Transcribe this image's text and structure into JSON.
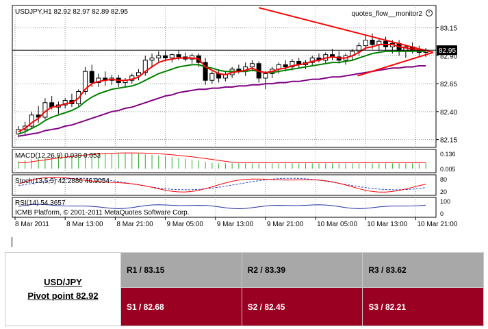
{
  "chart_data": {
    "type": "line",
    "title": "USDJPY,H1  82.92 82.97 82.89 82.95",
    "indicator_label": "quotes_flow__monitor2",
    "current_price": "82.95",
    "y_ticks": [
      "83.15",
      "82.90",
      "82.65",
      "82.40",
      "82.15"
    ],
    "ylim": [
      82.08,
      83.35
    ],
    "x_ticks": [
      "8 Mar 2011",
      "8 Mar 13:00",
      "8 Mar 21:00",
      "9 Mar 05:00",
      "9 Mar 13:00",
      "9 Mar 21:00",
      "10 Mar 05:00",
      "10 Mar 13:00",
      "10 Mar 21:00"
    ],
    "candles": [
      [
        82.2,
        82.27,
        82.17,
        82.24
      ],
      [
        82.24,
        82.31,
        82.2,
        82.27
      ],
      [
        82.27,
        82.4,
        82.25,
        82.37
      ],
      [
        82.37,
        82.45,
        82.3,
        82.35
      ],
      [
        82.35,
        82.52,
        82.33,
        82.48
      ],
      [
        82.48,
        82.54,
        82.42,
        82.44
      ],
      [
        82.44,
        82.49,
        82.38,
        82.46
      ],
      [
        82.46,
        82.52,
        82.43,
        82.5
      ],
      [
        82.5,
        82.56,
        82.44,
        82.47
      ],
      [
        82.47,
        82.6,
        82.45,
        82.58
      ],
      [
        82.58,
        82.8,
        82.55,
        82.76
      ],
      [
        82.76,
        82.82,
        82.62,
        82.66
      ],
      [
        82.66,
        82.74,
        82.62,
        82.7
      ],
      [
        82.7,
        82.76,
        82.63,
        82.68
      ],
      [
        82.68,
        82.73,
        82.64,
        82.7
      ],
      [
        82.7,
        82.73,
        82.62,
        82.66
      ],
      [
        82.66,
        82.7,
        82.62,
        82.68
      ],
      [
        82.68,
        82.74,
        82.65,
        82.72
      ],
      [
        82.72,
        82.78,
        82.68,
        82.75
      ],
      [
        82.75,
        82.9,
        82.72,
        82.86
      ],
      [
        82.86,
        82.92,
        82.8,
        82.88
      ],
      [
        82.88,
        82.94,
        82.84,
        82.9
      ],
      [
        82.9,
        82.94,
        82.85,
        82.88
      ],
      [
        82.88,
        82.92,
        82.84,
        82.91
      ],
      [
        82.91,
        82.95,
        82.86,
        82.89
      ],
      [
        82.89,
        82.93,
        82.85,
        82.87
      ],
      [
        82.87,
        82.92,
        82.83,
        82.9
      ],
      [
        82.9,
        82.92,
        82.8,
        82.84
      ],
      [
        82.84,
        82.88,
        82.64,
        82.68
      ],
      [
        82.68,
        82.76,
        82.65,
        82.74
      ],
      [
        82.74,
        82.78,
        82.66,
        82.7
      ],
      [
        82.7,
        82.76,
        82.67,
        82.73
      ],
      [
        82.73,
        82.8,
        82.7,
        82.78
      ],
      [
        82.78,
        82.82,
        82.74,
        82.76
      ],
      [
        82.76,
        82.84,
        82.72,
        82.8
      ],
      [
        82.8,
        82.86,
        82.76,
        82.83
      ],
      [
        82.83,
        82.85,
        82.66,
        82.7
      ],
      [
        82.7,
        82.76,
        82.6,
        82.74
      ],
      [
        82.74,
        82.8,
        82.7,
        82.78
      ],
      [
        82.78,
        82.84,
        82.74,
        82.82
      ],
      [
        82.82,
        82.86,
        82.76,
        82.8
      ],
      [
        82.8,
        82.87,
        82.77,
        82.85
      ],
      [
        82.85,
        82.88,
        82.79,
        82.82
      ],
      [
        82.82,
        82.86,
        82.78,
        82.84
      ],
      [
        82.84,
        82.9,
        82.81,
        82.88
      ],
      [
        82.88,
        82.92,
        82.84,
        82.86
      ],
      [
        82.86,
        82.93,
        82.83,
        82.91
      ],
      [
        82.91,
        82.96,
        82.86,
        82.89
      ],
      [
        82.89,
        82.94,
        82.83,
        82.86
      ],
      [
        82.86,
        82.92,
        82.82,
        82.9
      ],
      [
        82.9,
        82.96,
        82.86,
        82.94
      ],
      [
        82.94,
        83.02,
        82.9,
        82.99
      ],
      [
        82.99,
        83.08,
        82.95,
        83.04
      ],
      [
        83.04,
        83.1,
        82.96,
        83.0
      ],
      [
        83.0,
        83.06,
        82.94,
        83.03
      ],
      [
        83.03,
        83.07,
        82.95,
        82.98
      ],
      [
        82.98,
        83.04,
        82.92,
        83.01
      ],
      [
        83.01,
        83.04,
        82.9,
        82.94
      ],
      [
        82.94,
        83.0,
        82.88,
        82.98
      ],
      [
        82.98,
        83.02,
        82.92,
        82.95
      ],
      [
        82.95,
        82.99,
        82.9,
        82.93
      ],
      [
        82.93,
        82.97,
        82.89,
        82.95
      ]
    ],
    "ma_fast": [
      82.22,
      82.25,
      82.3,
      82.34,
      82.4,
      82.44,
      82.45,
      82.47,
      82.48,
      82.52,
      82.6,
      82.65,
      82.67,
      82.68,
      82.69,
      82.68,
      82.68,
      82.69,
      82.71,
      82.76,
      82.8,
      82.84,
      82.86,
      82.87,
      82.88,
      82.88,
      82.88,
      82.87,
      82.8,
      82.77,
      82.74,
      82.73,
      82.75,
      82.76,
      82.77,
      82.79,
      82.76,
      82.75,
      82.76,
      82.78,
      82.79,
      82.81,
      82.82,
      82.83,
      82.85,
      82.86,
      82.88,
      82.89,
      82.88,
      82.88,
      82.9,
      82.93,
      82.97,
      82.98,
      83.0,
      83.0,
      83.0,
      82.98,
      82.97,
      82.96,
      82.95,
      82.95
    ],
    "ma_mid": [
      82.2,
      82.22,
      82.25,
      82.28,
      82.32,
      82.35,
      82.37,
      82.39,
      82.41,
      82.44,
      82.49,
      82.53,
      82.56,
      82.58,
      82.6,
      82.61,
      82.62,
      82.63,
      82.65,
      82.68,
      82.71,
      82.74,
      82.76,
      82.78,
      82.8,
      82.81,
      82.82,
      82.82,
      82.8,
      82.79,
      82.77,
      82.76,
      82.76,
      82.76,
      82.76,
      82.77,
      82.76,
      82.75,
      82.75,
      82.76,
      82.77,
      82.78,
      82.79,
      82.8,
      82.81,
      82.82,
      82.83,
      82.84,
      82.84,
      82.85,
      82.86,
      82.88,
      82.9,
      82.92,
      82.93,
      82.94,
      82.94,
      82.94,
      82.94,
      82.94,
      82.94,
      82.94
    ],
    "ma_slow": [
      82.18,
      82.19,
      82.2,
      82.21,
      82.23,
      82.24,
      82.25,
      82.27,
      82.28,
      82.3,
      82.32,
      82.34,
      82.36,
      82.38,
      82.4,
      82.41,
      82.43,
      82.44,
      82.46,
      82.48,
      82.5,
      82.52,
      82.54,
      82.55,
      82.57,
      82.58,
      82.59,
      82.6,
      82.6,
      82.61,
      82.61,
      82.62,
      82.62,
      82.63,
      82.63,
      82.64,
      82.64,
      82.65,
      82.65,
      82.66,
      82.66,
      82.67,
      82.67,
      82.68,
      82.69,
      82.69,
      82.7,
      82.71,
      82.71,
      82.72,
      82.73,
      82.74,
      82.75,
      82.76,
      82.77,
      82.78,
      82.79,
      82.79,
      82.8,
      82.8,
      82.81,
      82.81
    ],
    "macd_label": "MACD(12,26,9) 0.039 0.053",
    "macd_ticks": [
      "0.136",
      "0.005"
    ],
    "stoch_label": "Stoch(13,5,5) 42.2886 46.9054",
    "stoch_ticks": [
      "80",
      "20"
    ],
    "rsi_label": "RSI(14) 54.3657",
    "rsi_ticks": [
      "100",
      "0"
    ],
    "platform_text": "ICMB Platform, © 2001-2011 MetaQuotes Software Corp."
  },
  "pivot": {
    "pair": "USD/JPY",
    "pivot_text": "Pivot point 82.92",
    "r1": "R1 / 83.15",
    "r2": "R2 / 83.39",
    "r3": "R3 / 83.62",
    "s1": "S1 / 82.68",
    "s2": "S2 / 82.45",
    "s3": "S3 / 82.21"
  },
  "colors": {
    "ma_fast": "#ff0000",
    "ma_mid": "#008000",
    "ma_slow": "#800080",
    "trendline": "#ff0000",
    "resistance_bg": "#a8a8a8",
    "support_bg": "#990022"
  }
}
